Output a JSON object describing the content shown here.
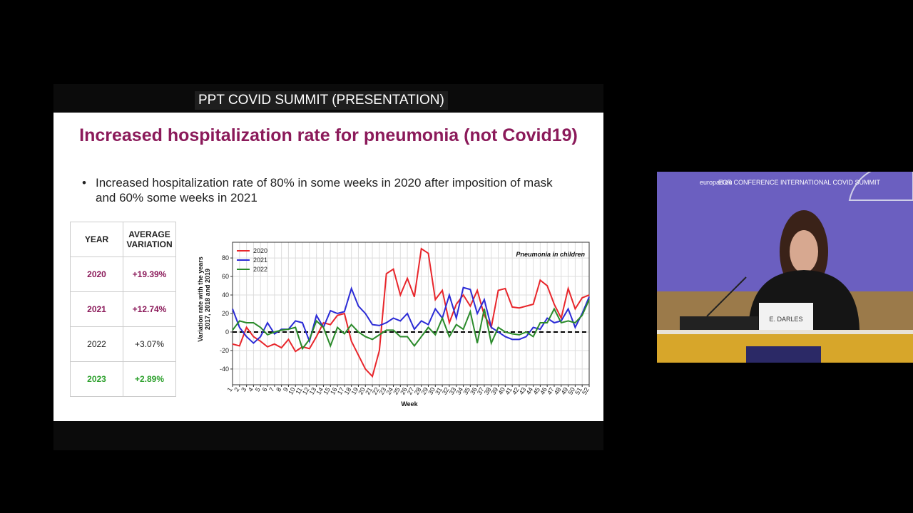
{
  "header": {
    "title": "PPT COVID SUMMIT (PRESENTATION)"
  },
  "slide": {
    "title": "Increased hospitalization rate for pneumonia (not Covid19)",
    "bullet": "Increased hospitalization rate of 80% in some weeks in 2020 after imposition of mask and 60% some weeks in 2021"
  },
  "table": {
    "header": [
      "YEAR",
      "AVERAGE VARIATION"
    ],
    "rows": [
      [
        "2020",
        "+19.39%"
      ],
      [
        "2021",
        "+12.74%"
      ],
      [
        "2022",
        "+3.07%"
      ],
      [
        "2023",
        "+2.89%"
      ]
    ],
    "row_colors": [
      "#8b1a5a",
      "#8b1a5a",
      "#222222",
      "#2ca02c"
    ]
  },
  "chart_data": {
    "type": "line",
    "title": "Pneumonia in children",
    "xlabel": "Week",
    "ylabel": [
      "Variation rate with the years",
      "2017, 2018 and 2019"
    ],
    "x": [
      1,
      2,
      3,
      4,
      5,
      6,
      7,
      8,
      9,
      10,
      11,
      12,
      13,
      14,
      15,
      16,
      17,
      18,
      19,
      20,
      21,
      22,
      23,
      24,
      25,
      26,
      27,
      28,
      29,
      30,
      31,
      32,
      33,
      34,
      35,
      36,
      37,
      38,
      39,
      40,
      41,
      42,
      43,
      44,
      45,
      46,
      47,
      48,
      49,
      50,
      51,
      52
    ],
    "series": [
      {
        "name": "2020",
        "color": "#e8262b",
        "values": [
          -13,
          -15,
          5,
          -5,
          -10,
          -16,
          -13,
          -17,
          -8,
          -21,
          -16,
          -18,
          -5,
          10,
          8,
          18,
          20,
          -10,
          -25,
          -40,
          -48,
          -20,
          63,
          68,
          40,
          58,
          38,
          90,
          85,
          35,
          45,
          10,
          30,
          40,
          28,
          45,
          18,
          5,
          45,
          47,
          27,
          26,
          28,
          30,
          56,
          50,
          30,
          15,
          47,
          25,
          37,
          40
        ]
      },
      {
        "name": "2021",
        "color": "#2b2bd6",
        "values": [
          25,
          5,
          -5,
          -12,
          -5,
          10,
          -2,
          3,
          3,
          12,
          10,
          -10,
          18,
          5,
          23,
          20,
          22,
          47,
          28,
          20,
          8,
          7,
          10,
          15,
          12,
          20,
          3,
          12,
          8,
          25,
          15,
          40,
          15,
          48,
          46,
          20,
          35,
          5,
          0,
          -5,
          -8,
          -8,
          -5,
          5,
          3,
          15,
          10,
          12,
          25,
          5,
          20,
          38
        ]
      },
      {
        "name": "2022",
        "color": "#2a8a2a",
        "values": [
          2,
          12,
          10,
          10,
          5,
          -3,
          0,
          2,
          3,
          5,
          -18,
          -8,
          12,
          5,
          -15,
          5,
          -2,
          8,
          0,
          -5,
          -8,
          -3,
          2,
          2,
          -5,
          -5,
          -15,
          -5,
          5,
          -3,
          15,
          -5,
          8,
          3,
          22,
          -12,
          25,
          -12,
          5,
          0,
          -2,
          -3,
          0,
          -5,
          10,
          10,
          25,
          10,
          12,
          10,
          18,
          35
        ]
      }
    ],
    "xlim": [
      1,
      52
    ],
    "ylim": [
      -57,
      97
    ],
    "xticks": [
      1,
      2,
      3,
      4,
      5,
      6,
      7,
      8,
      9,
      10,
      11,
      12,
      13,
      14,
      15,
      16,
      17,
      18,
      19,
      20,
      21,
      22,
      23,
      24,
      25,
      26,
      27,
      28,
      29,
      30,
      31,
      32,
      33,
      34,
      35,
      36,
      37,
      38,
      39,
      40,
      41,
      42,
      43,
      44,
      45,
      46,
      47,
      48,
      49,
      50,
      51,
      52
    ],
    "yticks": [
      -40,
      -20,
      0,
      20,
      40,
      60,
      80
    ],
    "hline": 0,
    "grid": true,
    "legend": "upper-left"
  },
  "video": {
    "site": "europarl.eu",
    "banner": "ECR CONFERENCE INTERNATIONAL COVID SUMMIT",
    "nameplate": "E. DARLES"
  }
}
